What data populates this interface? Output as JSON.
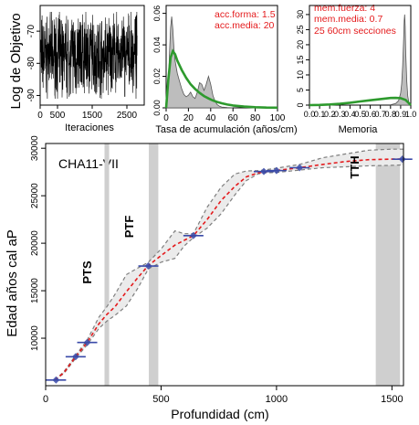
{
  "chart_data": [
    {
      "type": "line",
      "panel": "log-objective",
      "ylabel": "Log de Objetivo",
      "xlabel": "Iteraciones",
      "xlim": [
        0,
        3000
      ],
      "ylim": [
        -93,
        -62
      ],
      "xticks": [
        "0",
        "500",
        "1500",
        "2500"
      ],
      "xtick_values": [
        0,
        500,
        1500,
        2500
      ],
      "yticks": [
        "-70",
        "-80",
        "-90"
      ],
      "ytick_values": [
        -70,
        -80,
        -90
      ],
      "series": [
        {
          "range": [
            -91,
            -64
          ],
          "n_iterations": 2800
        }
      ]
    },
    {
      "type": "area",
      "panel": "accumulation-rate",
      "xlabel": "Tasa de acumulación (años/cm)",
      "xlim": [
        0,
        100
      ],
      "ylim": [
        0,
        0.065
      ],
      "xticks": [
        "0",
        "20",
        "40",
        "60",
        "80",
        "100"
      ],
      "xtick_values": [
        0,
        20,
        40,
        60,
        80,
        100
      ],
      "yticks": [
        "0.00",
        "0.02",
        "0.04",
        "0.06"
      ],
      "ytick_values": [
        0,
        0.02,
        0.04,
        0.06
      ],
      "annotations": [
        "acc.forma:  1.5",
        "acc.media:  20"
      ],
      "prior": {
        "x": [
          0,
          2,
          4,
          6,
          8,
          10,
          14,
          18,
          22,
          26,
          30,
          34,
          38,
          42,
          46,
          50,
          55,
          60,
          70,
          80,
          90,
          100
        ],
        "y": [
          0,
          0.018,
          0.032,
          0.036,
          0.034,
          0.03,
          0.024,
          0.019,
          0.015,
          0.012,
          0.0095,
          0.0075,
          0.006,
          0.0047,
          0.0037,
          0.0029,
          0.0021,
          0.0015,
          0.0008,
          0.0004,
          0.0002,
          0.0001
        ]
      },
      "posterior": {
        "x": [
          0,
          1,
          2,
          3,
          4,
          5,
          6,
          7,
          8,
          10,
          12,
          14,
          16,
          18,
          20,
          22,
          24,
          26,
          28,
          30,
          32,
          34,
          36,
          38,
          40,
          42,
          44,
          46,
          48,
          50,
          55,
          60
        ],
        "y": [
          0,
          0.004,
          0.015,
          0.035,
          0.051,
          0.058,
          0.05,
          0.038,
          0.03,
          0.022,
          0.017,
          0.012,
          0.0085,
          0.007,
          0.008,
          0.01,
          0.007,
          0.006,
          0.01,
          0.016,
          0.015,
          0.011,
          0.015,
          0.02,
          0.015,
          0.008,
          0.004,
          0.002,
          0.001,
          0.0005,
          0.0002,
          0
        ]
      },
      "colors": {
        "prior_line": "#2e9a2e",
        "posterior_fill": "#bdbdbd"
      }
    },
    {
      "type": "area",
      "panel": "memory",
      "xlabel": "Memoria",
      "xlim": [
        0,
        1
      ],
      "ylim": [
        0,
        33
      ],
      "xticks": [
        "0.0",
        "0.1",
        "0.2",
        "0.3",
        "0.4",
        "0.5",
        "0.6",
        "0.7",
        "0.8",
        "0.9",
        "1.0"
      ],
      "xtick_values": [
        0,
        0.1,
        0.2,
        0.3,
        0.4,
        0.5,
        0.6,
        0.7,
        0.8,
        0.9,
        1.0
      ],
      "yticks": [
        "0",
        "5",
        "10",
        "15",
        "20",
        "25",
        "30"
      ],
      "ytick_values": [
        0,
        5,
        10,
        15,
        20,
        25,
        30
      ],
      "annotations": [
        "mem.fuerza: 4",
        "mem.media: 0.7",
        "25 60cm secciones"
      ],
      "prior": {
        "x": [
          0,
          0.1,
          0.2,
          0.3,
          0.4,
          0.5,
          0.6,
          0.7,
          0.8,
          0.85,
          0.9,
          0.95,
          1.0
        ],
        "y": [
          0,
          0.05,
          0.2,
          0.45,
          0.8,
          1.2,
          1.6,
          2.0,
          2.35,
          2.4,
          2.3,
          1.7,
          0
        ]
      },
      "posterior": {
        "x": [
          0.8,
          0.85,
          0.88,
          0.9,
          0.91,
          0.92,
          0.93,
          0.935,
          0.94,
          0.945,
          0.95,
          0.96,
          0.97,
          0.98,
          0.99,
          1.0
        ],
        "y": [
          0.1,
          0.5,
          1.5,
          4,
          7,
          13,
          22,
          28,
          30,
          26,
          18,
          8,
          3,
          1,
          0.3,
          0
        ]
      },
      "colors": {
        "prior_line": "#2e9a2e",
        "posterior_fill": "#bdbdbd"
      }
    },
    {
      "type": "line",
      "panel": "age-depth",
      "title": "CHA11-VII",
      "xlabel": "Profundidad (cm)",
      "ylabel": "Edad años cal aP",
      "xlim": [
        0,
        1550
      ],
      "ylim": [
        5000,
        30500
      ],
      "xticks": [
        "0",
        "500",
        "1000",
        "1500"
      ],
      "xtick_values": [
        0,
        500,
        1000,
        1500
      ],
      "yticks": [
        "10000",
        "15000",
        "20000",
        "25000",
        "30000"
      ],
      "ytick_values": [
        10000,
        15000,
        20000,
        25000,
        30000
      ],
      "shaded_bands": [
        {
          "label": "PTS",
          "from": 255,
          "to": 275
        },
        {
          "label": "PTF",
          "from": 447,
          "to": 488
        },
        {
          "label": "TTH",
          "from": 1430,
          "to": 1535
        }
      ],
      "dates": [
        {
          "depth": 45,
          "age": 5600
        },
        {
          "depth": 130,
          "age": 8050
        },
        {
          "depth": 180,
          "age": 9550
        },
        {
          "depth": 445,
          "age": 17600
        },
        {
          "depth": 640,
          "age": 20800
        },
        {
          "depth": 945,
          "age": 27550
        },
        {
          "depth": 1000,
          "age": 27650
        },
        {
          "depth": 1100,
          "age": 27950
        },
        {
          "depth": 1545,
          "age": 28850
        }
      ],
      "median": {
        "depth": [
          40,
          80,
          130,
          180,
          230,
          265,
          300,
          350,
          400,
          445,
          500,
          560,
          600,
          640,
          700,
          760,
          820,
          870,
          920,
          945,
          1000,
          1100,
          1200,
          1300,
          1400,
          1500,
          1550
        ],
        "age": [
          5600,
          6400,
          8050,
          9550,
          11500,
          12500,
          13300,
          14900,
          16400,
          17650,
          18700,
          19800,
          20300,
          20800,
          22500,
          24500,
          26000,
          27000,
          27400,
          27500,
          27650,
          27950,
          28300,
          28600,
          28800,
          28850,
          28850
        ]
      },
      "ci_lower": {
        "depth": [
          40,
          80,
          130,
          180,
          230,
          265,
          300,
          350,
          400,
          445,
          500,
          560,
          600,
          640,
          700,
          760,
          820,
          870,
          920,
          945,
          1000,
          1100,
          1200,
          1300,
          1400,
          1500,
          1550
        ],
        "age": [
          5600,
          6300,
          7900,
          9300,
          11000,
          11800,
          12400,
          13400,
          15300,
          17300,
          18000,
          18400,
          19700,
          20600,
          21600,
          23100,
          25100,
          26600,
          27300,
          27400,
          27450,
          27700,
          27950,
          28050,
          28150,
          28200,
          28250
        ]
      },
      "ci_upper": {
        "depth": [
          40,
          80,
          130,
          180,
          230,
          265,
          300,
          350,
          400,
          445,
          500,
          560,
          600,
          640,
          700,
          760,
          820,
          870,
          920,
          945,
          1000,
          1100,
          1200,
          1300,
          1400,
          1500,
          1550
        ],
        "age": [
          5600,
          6500,
          8200,
          9800,
          12200,
          13300,
          14600,
          16700,
          17400,
          18000,
          19400,
          21300,
          21000,
          21000,
          23800,
          25900,
          27300,
          27600,
          27650,
          27700,
          27900,
          28300,
          29000,
          29400,
          29800,
          29900,
          29900
        ]
      },
      "colors": {
        "median": "#e41a1c",
        "ci": "#7f7f7f",
        "band": "#cfcfcf",
        "date_marker": "#3a4aa8"
      }
    }
  ]
}
